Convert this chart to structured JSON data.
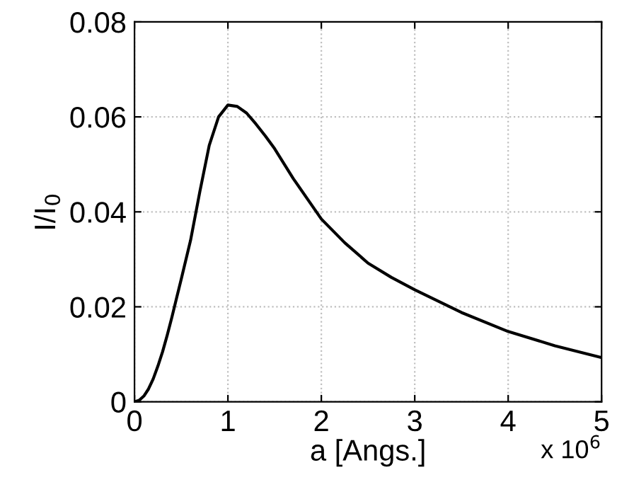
{
  "chart_data": {
    "type": "line",
    "xlabel": "a [Angs.]",
    "ylabel": "I/I$_{0}$",
    "x": [
      0,
      0.05,
      0.1,
      0.15,
      0.2,
      0.25,
      0.3,
      0.35,
      0.4,
      0.45,
      0.5,
      0.6,
      0.7,
      0.8,
      0.9,
      1.0,
      1.1,
      1.2,
      1.3,
      1.4,
      1.5,
      1.7,
      2.0,
      2.25,
      2.5,
      2.75,
      3.0,
      3.5,
      4.0,
      4.5,
      5.0
    ],
    "series": [
      {
        "color": "#000000",
        "values": [
          0,
          0.0003,
          0.0012,
          0.0027,
          0.0048,
          0.0075,
          0.0105,
          0.014,
          0.0178,
          0.0218,
          0.0258,
          0.034,
          0.0443,
          0.054,
          0.06,
          0.0625,
          0.0622,
          0.0608,
          0.0585,
          0.056,
          0.0533,
          0.047,
          0.0385,
          0.0335,
          0.0292,
          0.0262,
          0.0236,
          0.0188,
          0.0148,
          0.0118,
          0.0093
        ]
      }
    ],
    "xlim": [
      0,
      5
    ],
    "ylim": [
      0,
      0.08
    ],
    "xticks": [
      0,
      1,
      2,
      3,
      4,
      5
    ],
    "yticks": [
      0,
      0.02,
      0.04,
      0.06,
      0.08
    ],
    "grid": true,
    "line_style": "solid",
    "marker": "none",
    "annotations": [
      "x 10$^{6}$"
    ]
  }
}
